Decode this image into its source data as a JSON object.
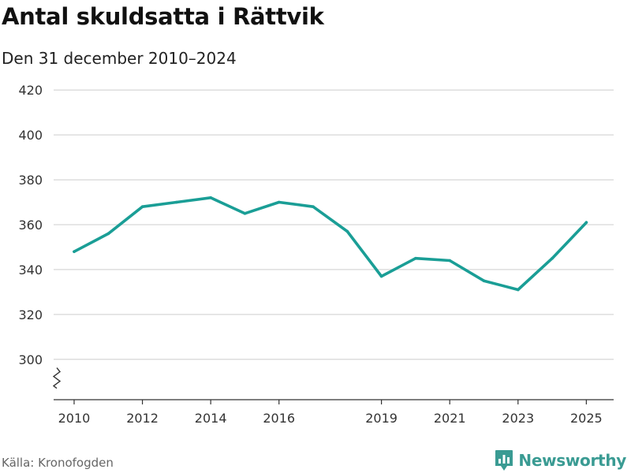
{
  "chart_data": {
    "type": "line",
    "title": "Antal skuldsatta i Rättvik",
    "subtitle": "Den 31 december 2010–2024",
    "source": "Källa: Kronofogden",
    "brand": "Newsworthy",
    "x": [
      2010,
      2011,
      2012,
      2013,
      2014,
      2015,
      2016,
      2017,
      2018,
      2019,
      2020,
      2021,
      2022,
      2023,
      2024,
      2025
    ],
    "series": [
      {
        "values": [
          348,
          356,
          368,
          370,
          372,
          365,
          370,
          368,
          357,
          337,
          345,
          344,
          335,
          331,
          345,
          361
        ]
      }
    ],
    "x_ticks": [
      2010,
      2012,
      2014,
      2016,
      2019,
      2021,
      2023,
      2025
    ],
    "y_ticks": [
      300,
      320,
      340,
      360,
      380,
      400,
      420
    ],
    "ylim": [
      282,
      425
    ],
    "xlim": [
      2009.4,
      2025.8
    ],
    "axis_break": true,
    "grid": true,
    "line_color": "#1a9e96",
    "grid_color": "#dddddd",
    "axis_color": "#333333",
    "brand_color": "#3a9b93"
  }
}
